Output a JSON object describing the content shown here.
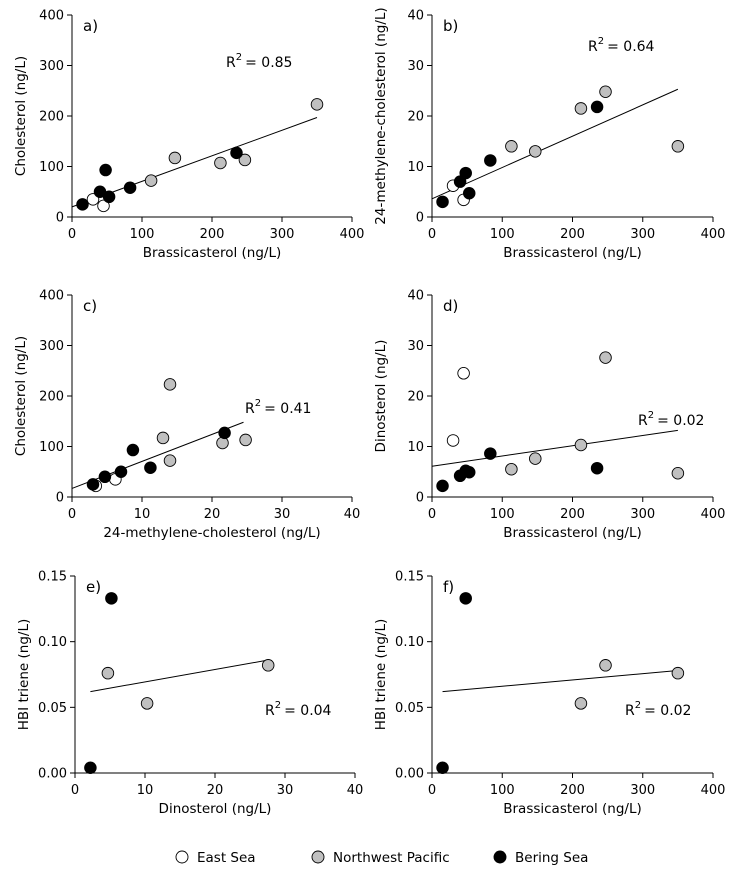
{
  "legend": {
    "items": [
      {
        "label": "East Sea",
        "color": "#ffffff"
      },
      {
        "label": "Northwest Pacific",
        "color": "#c0c0c0"
      },
      {
        "label": "Bering Sea",
        "color": "#000000"
      }
    ]
  },
  "chart_data": [
    {
      "type": "scatter",
      "panel_label": "a)",
      "xlabel": "Brassicasterol (ng/L)",
      "ylabel": "Cholesterol (ng/L)",
      "xlim": [
        0,
        400
      ],
      "ylim": [
        0,
        400
      ],
      "xticks": [
        "0",
        "100",
        "200",
        "300",
        "400"
      ],
      "yticks": [
        "0",
        "100",
        "200",
        "300",
        "400"
      ],
      "r2_label": "R",
      "r2_value": "= 0.85",
      "fit_line": [
        [
          0,
          20
        ],
        [
          350,
          197
        ]
      ],
      "series": [
        {
          "name": "East Sea",
          "points": [
            [
              30,
              35
            ],
            [
              45,
              22
            ]
          ]
        },
        {
          "name": "Northwest Pacific",
          "points": [
            [
              113,
              72
            ],
            [
              147,
              117
            ],
            [
              212,
              107
            ],
            [
              247,
              113
            ],
            [
              350,
              223
            ]
          ]
        },
        {
          "name": "Bering Sea",
          "points": [
            [
              15,
              25
            ],
            [
              40,
              50
            ],
            [
              48,
              93
            ],
            [
              53,
              40
            ],
            [
              83,
              58
            ],
            [
              235,
              127
            ]
          ]
        }
      ]
    },
    {
      "type": "scatter",
      "panel_label": "b)",
      "xlabel": "Brassicasterol (ng/L)",
      "ylabel": "24-methylene-cholesterol (ng/L)",
      "xlim": [
        0,
        400
      ],
      "ylim": [
        0,
        40
      ],
      "xticks": [
        "0",
        "100",
        "200",
        "300",
        "400"
      ],
      "yticks": [
        "0",
        "10",
        "20",
        "30",
        "40"
      ],
      "r2_label": "R",
      "r2_value": "= 0.64",
      "fit_line": [
        [
          0,
          3.6
        ],
        [
          350,
          25.3
        ]
      ],
      "series": [
        {
          "name": "East Sea",
          "points": [
            [
              30,
              6.2
            ],
            [
              45,
              3.4
            ]
          ]
        },
        {
          "name": "Northwest Pacific",
          "points": [
            [
              113,
              14.0
            ],
            [
              147,
              13.0
            ],
            [
              212,
              21.5
            ],
            [
              247,
              24.8
            ],
            [
              350,
              14.0
            ]
          ]
        },
        {
          "name": "Bering Sea",
          "points": [
            [
              15,
              3.0
            ],
            [
              40,
              7.0
            ],
            [
              48,
              8.7
            ],
            [
              53,
              4.7
            ],
            [
              83,
              11.2
            ],
            [
              235,
              21.8
            ]
          ]
        }
      ]
    },
    {
      "type": "scatter",
      "panel_label": "c)",
      "xlabel": "24-methylene-cholesterol (ng/L)",
      "ylabel": "Cholesterol (ng/L)",
      "xlim": [
        0,
        40
      ],
      "ylim": [
        0,
        400
      ],
      "xticks": [
        "0",
        "10",
        "20",
        "30",
        "40"
      ],
      "yticks": [
        "0",
        "100",
        "200",
        "300",
        "400"
      ],
      "r2_label": "R",
      "r2_value": "= 0.41",
      "fit_line": [
        [
          0,
          17
        ],
        [
          24.5,
          148
        ]
      ],
      "series": [
        {
          "name": "East Sea",
          "points": [
            [
              3.4,
              22
            ],
            [
              6.2,
              35
            ]
          ]
        },
        {
          "name": "Northwest Pacific",
          "points": [
            [
              13.0,
              117
            ],
            [
              14.0,
              72
            ],
            [
              14.0,
              223
            ],
            [
              21.5,
              107
            ],
            [
              24.8,
              113
            ]
          ]
        },
        {
          "name": "Bering Sea",
          "points": [
            [
              3.0,
              25
            ],
            [
              4.7,
              40
            ],
            [
              7.0,
              50
            ],
            [
              8.7,
              93
            ],
            [
              11.2,
              58
            ],
            [
              21.8,
              127
            ]
          ]
        }
      ]
    },
    {
      "type": "scatter",
      "panel_label": "d)",
      "xlabel": "Brassicasterol (ng/L)",
      "ylabel": "Dinosterol (ng/L)",
      "xlim": [
        0,
        400
      ],
      "ylim": [
        0,
        40
      ],
      "xticks": [
        "0",
        "100",
        "200",
        "300",
        "400"
      ],
      "yticks": [
        "0",
        "10",
        "20",
        "30",
        "40"
      ],
      "r2_label": "R",
      "r2_value": "= 0.02",
      "fit_line": [
        [
          0,
          6.1
        ],
        [
          350,
          13.2
        ]
      ],
      "series": [
        {
          "name": "East Sea",
          "points": [
            [
              30,
              11.2
            ],
            [
              45,
              24.5
            ]
          ]
        },
        {
          "name": "Northwest Pacific",
          "points": [
            [
              113,
              5.5
            ],
            [
              147,
              7.6
            ],
            [
              212,
              10.3
            ],
            [
              247,
              27.6
            ],
            [
              350,
              4.7
            ]
          ]
        },
        {
          "name": "Bering Sea",
          "points": [
            [
              15,
              2.2
            ],
            [
              40,
              4.2
            ],
            [
              48,
              5.2
            ],
            [
              53,
              4.9
            ],
            [
              83,
              8.6
            ],
            [
              235,
              5.7
            ]
          ]
        }
      ]
    },
    {
      "type": "scatter",
      "panel_label": "e)",
      "xlabel": "Dinosterol (ng/L)",
      "ylabel": "HBI triene (ng/L)",
      "xlim": [
        0,
        40
      ],
      "ylim": [
        0,
        0.15
      ],
      "xticks": [
        "0",
        "10",
        "20",
        "30",
        "40"
      ],
      "yticks": [
        "0.00",
        "0.05",
        "0.10",
        "0.15"
      ],
      "r2_label": "R",
      "r2_value": "= 0.04",
      "fit_line": [
        [
          2.2,
          0.062
        ],
        [
          27.6,
          0.086
        ]
      ],
      "series": [
        {
          "name": "East Sea",
          "points": []
        },
        {
          "name": "Northwest Pacific",
          "points": [
            [
              4.7,
              0.076
            ],
            [
              10.3,
              0.053
            ],
            [
              27.6,
              0.082
            ]
          ]
        },
        {
          "name": "Bering Sea",
          "points": [
            [
              2.2,
              0.004
            ],
            [
              5.2,
              0.133
            ]
          ]
        }
      ]
    },
    {
      "type": "scatter",
      "panel_label": "f)",
      "xlabel": "Brassicasterol (ng/L)",
      "ylabel": "HBI triene (ng/L)",
      "xlim": [
        0,
        400
      ],
      "ylim": [
        0,
        0.15
      ],
      "xticks": [
        "0",
        "100",
        "200",
        "300",
        "400"
      ],
      "yticks": [
        "0.00",
        "0.05",
        "0.10",
        "0.15"
      ],
      "r2_label": "R",
      "r2_value": "= 0.02",
      "fit_line": [
        [
          15,
          0.062
        ],
        [
          350,
          0.078
        ]
      ],
      "series": [
        {
          "name": "East Sea",
          "points": []
        },
        {
          "name": "Northwest Pacific",
          "points": [
            [
              212,
              0.053
            ],
            [
              247,
              0.082
            ],
            [
              350,
              0.076
            ]
          ]
        },
        {
          "name": "Bering Sea",
          "points": [
            [
              15,
              0.004
            ],
            [
              48,
              0.133
            ]
          ]
        }
      ]
    }
  ]
}
